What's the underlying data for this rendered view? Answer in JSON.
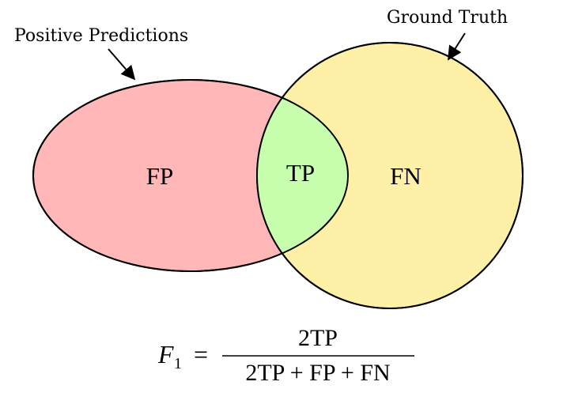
{
  "labels": {
    "positive_predictions": "Positive Predictions",
    "ground_truth": "Ground Truth"
  },
  "regions": {
    "fp": "FP",
    "tp": "TP",
    "fn": "FN"
  },
  "formula": {
    "lhs_symbol": "F",
    "lhs_subscript": "1",
    "equals": "=",
    "numerator": "2TP",
    "denominator": "2TP + FP + FN"
  },
  "colors": {
    "predictions_fill": "#ffb7b7",
    "ground_truth_fill": "#fff0a8",
    "intersection_fill": "#c8ffae",
    "outline": "#000000"
  }
}
